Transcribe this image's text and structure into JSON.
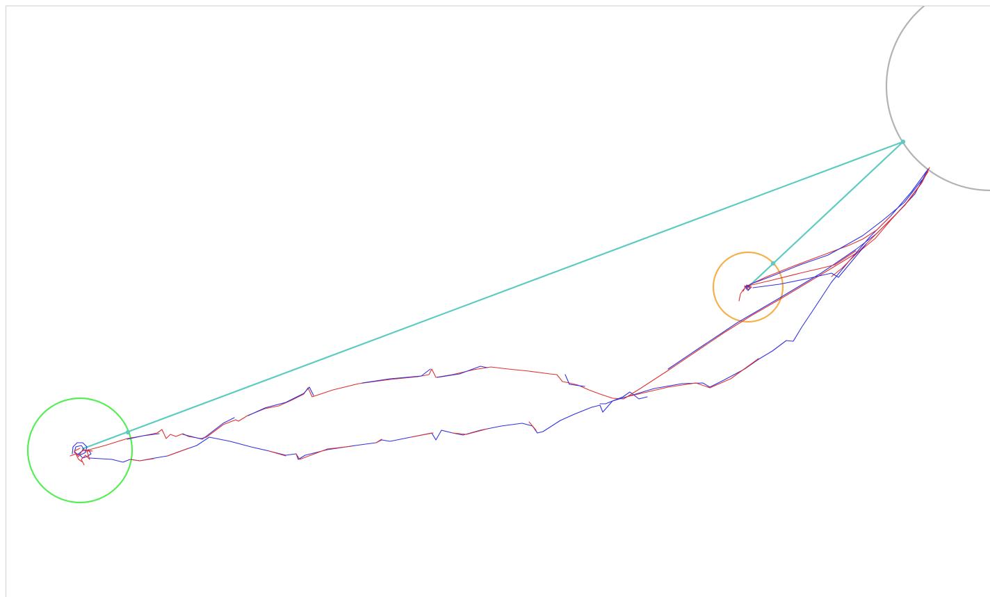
{
  "scene": {
    "background": "#ffffff",
    "frame_color": "#cfcfcf"
  },
  "colors": {
    "trajectory_a": "#e03030",
    "trajectory_b": "#3030e0",
    "connector": "#5ecbc0",
    "start_zone": "#55ee55",
    "target_zone": "#f5b04a",
    "large_zone": "#b3b3b3"
  }
}
